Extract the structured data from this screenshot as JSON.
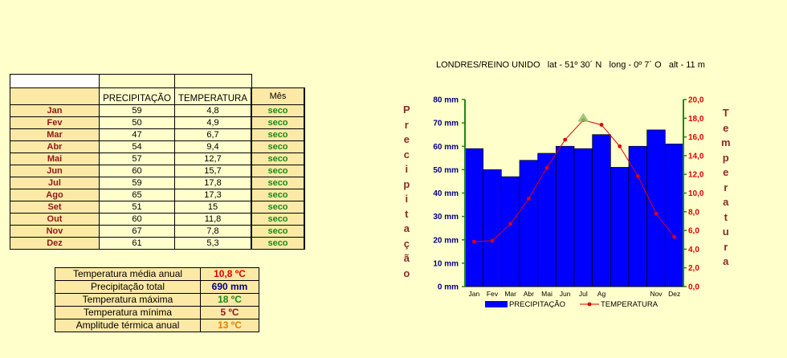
{
  "table": {
    "col_precip": "PRECIPITAÇÃO",
    "col_temp": "TEMPERATURA",
    "col_mes": "Mês",
    "rows": [
      {
        "m": "Jan",
        "p": "59",
        "t": "4,8",
        "s": "seco"
      },
      {
        "m": "Fev",
        "p": "50",
        "t": "4,9",
        "s": "seco"
      },
      {
        "m": "Mar",
        "p": "47",
        "t": "6,7",
        "s": "seco"
      },
      {
        "m": "Abr",
        "p": "54",
        "t": "9,4",
        "s": "seco"
      },
      {
        "m": "Mai",
        "p": "57",
        "t": "12,7",
        "s": "seco"
      },
      {
        "m": "Jun",
        "p": "60",
        "t": "15,7",
        "s": "seco"
      },
      {
        "m": "Jul",
        "p": "59",
        "t": "17,8",
        "s": "seco"
      },
      {
        "m": "Ago",
        "p": "65",
        "t": "17,3",
        "s": "seco"
      },
      {
        "m": "Set",
        "p": "51",
        "t": "15",
        "s": "seco"
      },
      {
        "m": "Out",
        "p": "60",
        "t": "11,8",
        "s": "seco"
      },
      {
        "m": "Nov",
        "p": "67",
        "t": "7,8",
        "s": "seco"
      },
      {
        "m": "Dez",
        "p": "61",
        "t": "5,3",
        "s": "seco"
      }
    ]
  },
  "summary": [
    {
      "label": "Temperatura média anual",
      "value": "10,8 ºC",
      "color": "#e00000"
    },
    {
      "label": "Precipitação total",
      "value": "690 mm",
      "color": "#000080"
    },
    {
      "label": "Temperatura máxima",
      "value": "18 ºC",
      "color": "#1a8a1a"
    },
    {
      "label": "Temperatura mínima",
      "value": "5 ºC",
      "color": "#8b1a1a"
    },
    {
      "label": "Amplitude térmica anual",
      "value": "13 ºC",
      "color": "#e08000"
    }
  ],
  "chart_data": {
    "type": "bar",
    "title": "LONDRES/REINO UNIDO   lat - 51º 30´ N   long - 0º 7´ O   alt - 11 m",
    "categories": [
      "Jan",
      "Fev",
      "Mar",
      "Abr",
      "Mai",
      "Jun",
      "Jul",
      "Ag",
      "",
      "",
      "Nov",
      "Dez"
    ],
    "series": [
      {
        "name": "PRECIPITAÇÃO",
        "type": "bar",
        "axis": "left",
        "values": [
          59,
          50,
          47,
          54,
          57,
          60,
          59,
          65,
          51,
          60,
          67,
          61
        ],
        "color": "#0000ff"
      },
      {
        "name": "TEMPERATURA",
        "type": "line",
        "axis": "right",
        "values": [
          4.8,
          4.9,
          6.7,
          9.4,
          12.7,
          15.7,
          17.8,
          17.3,
          15,
          11.8,
          7.8,
          5.3
        ],
        "color": "#e00000"
      }
    ],
    "ylabel": "Precipitação",
    "y2label": "Temperatura",
    "ylim": [
      0,
      80
    ],
    "y2lim": [
      0,
      20
    ],
    "yticks": [
      "0 mm",
      "10 mm",
      "20 mm",
      "30 mm",
      "40 mm",
      "50 mm",
      "60 mm",
      "70 mm",
      "80 mm"
    ],
    "y2ticks": [
      "0,0",
      "2,0",
      "4,0",
      "6,0",
      "8,0",
      "10,0",
      "12,0",
      "14,0",
      "16,0",
      "18,0",
      "20,0"
    ],
    "ylabel_color": "#8b2a2a",
    "y2label_color": "#8b2a2a",
    "grid": false,
    "legend": "bottom"
  }
}
